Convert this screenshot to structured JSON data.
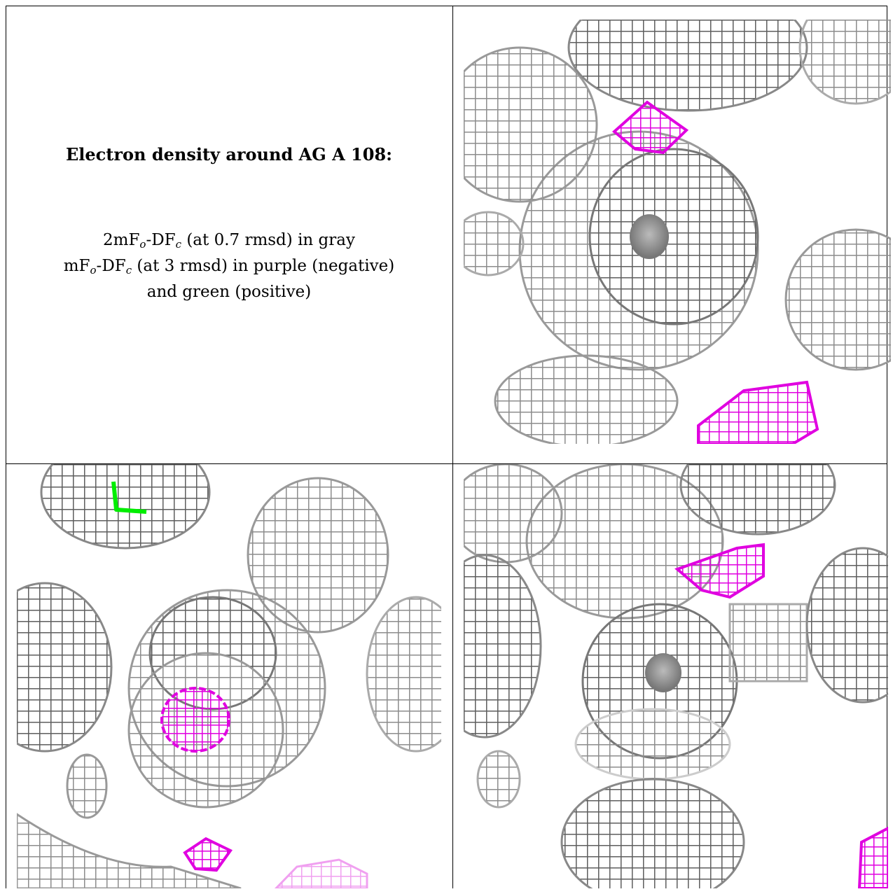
{
  "caption": {
    "title": "Electron density around AG A 108:",
    "line1_main": "2mF",
    "line1_sub1": "o",
    "line1_mid": "-DF",
    "line1_sub2": "c",
    "line1_rest": " (at 0.7 rmsd) in gray",
    "line2_main": "mF",
    "line2_sub1": "o",
    "line2_mid": "-DF",
    "line2_sub2": "c",
    "line2_rest": " (at 3 rmsd) in purple (negative)",
    "line3": "and green (positive)"
  },
  "colors": {
    "mesh_gray": "#8c8c8c",
    "mesh_dark": "#5a5a5a",
    "negative": "#e000e0",
    "positive": "#00ee00",
    "frame": "#000000"
  },
  "panels": [
    {
      "name": "view-top-right",
      "blobs": [
        "gray",
        "gray",
        "gray",
        "negative",
        "negative"
      ]
    },
    {
      "name": "view-bottom-left",
      "blobs": [
        "gray",
        "gray",
        "gray",
        "negative",
        "negative",
        "positive"
      ]
    },
    {
      "name": "view-bottom-right",
      "blobs": [
        "gray",
        "gray",
        "gray",
        "negative",
        "negative"
      ]
    }
  ]
}
